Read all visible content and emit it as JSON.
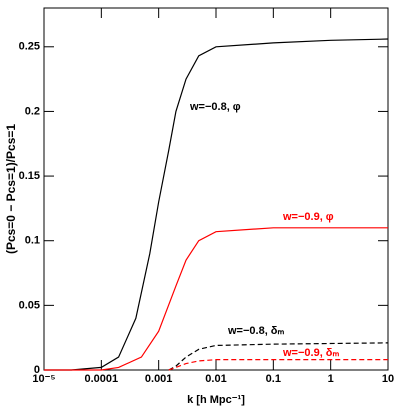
{
  "chart_data": {
    "type": "line",
    "x_label": "k [h Mpc⁻¹]",
    "y_label": "(Pcs=0 − Pcs=1)/Pcs=1",
    "xscale": "log",
    "xlim": [
      1e-05,
      10
    ],
    "ylim": [
      0,
      0.28
    ],
    "xticks": [
      {
        "value": 1e-05,
        "label": "10⁻⁵"
      },
      0.0001,
      0.001,
      0.01,
      0.1,
      1,
      10
    ],
    "yticks": [
      0,
      0.05,
      0.1,
      0.15,
      0.2,
      0.25
    ],
    "series": [
      {
        "name": "w=−0.8, φ",
        "color": "#000000",
        "dashed": false,
        "x": [
          1e-05,
          3e-05,
          0.0001,
          0.0002,
          0.0004,
          0.0007,
          0.001,
          0.0015,
          0.002,
          0.003,
          0.005,
          0.01,
          0.1,
          1,
          10
        ],
        "values": [
          0,
          0,
          0.002,
          0.01,
          0.04,
          0.09,
          0.13,
          0.17,
          0.2,
          0.225,
          0.243,
          0.25,
          0.253,
          0.255,
          0.256
        ]
      },
      {
        "name": "w=−0.9, φ",
        "color": "#ff0000",
        "dashed": false,
        "x": [
          1e-05,
          0.0001,
          0.0002,
          0.0005,
          0.001,
          0.002,
          0.003,
          0.005,
          0.01,
          0.1,
          10
        ],
        "values": [
          0,
          0,
          0.002,
          0.01,
          0.03,
          0.065,
          0.085,
          0.1,
          0.107,
          0.11,
          0.11
        ]
      },
      {
        "name": "w=−0.8, δₘ",
        "color": "#000000",
        "dashed": true,
        "x": [
          0.0015,
          0.002,
          0.003,
          0.005,
          0.01,
          0.1,
          10
        ],
        "values": [
          0,
          0.003,
          0.01,
          0.016,
          0.019,
          0.02,
          0.021
        ]
      },
      {
        "name": "w=−0.9, δₘ",
        "color": "#ff0000",
        "dashed": true,
        "x": [
          0.0015,
          0.002,
          0.003,
          0.005,
          0.01,
          0.1,
          10
        ],
        "values": [
          0,
          0.002,
          0.005,
          0.007,
          0.008,
          0.008,
          0.008
        ]
      }
    ]
  }
}
